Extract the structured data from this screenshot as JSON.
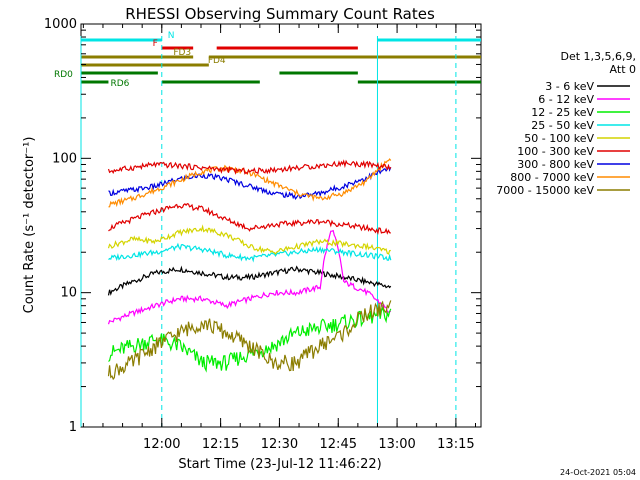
{
  "chart_data": {
    "type": "line",
    "title": "RHESSI Observing Summary Count Rates",
    "xlabel": "Start Time (23-Jul-12 11:46:22)",
    "ylabel": "Count Rate (s⁻¹ detector⁻¹)",
    "yscale": "log",
    "ylim": [
      1,
      1000
    ],
    "xlim_minutes_from_start": [
      -7,
      95
    ],
    "x_ticks": [
      {
        "label": "12:00",
        "t": 13.6
      },
      {
        "label": "12:15",
        "t": 28.6
      },
      {
        "label": "12:30",
        "t": 43.6
      },
      {
        "label": "12:45",
        "t": 58.6
      },
      {
        "label": "13:00",
        "t": 73.6
      },
      {
        "label": "13:15",
        "t": 88.6
      }
    ],
    "y_ticks": [
      {
        "label": "1",
        "v": 1
      },
      {
        "label": "10",
        "v": 10
      },
      {
        "label": "100",
        "v": 100
      },
      {
        "label": "1000",
        "v": 1000
      }
    ],
    "legend": {
      "placement": "right",
      "header": [
        "Det 1,3,5,6,9,",
        "Att 0"
      ],
      "entries": [
        {
          "label": "3 - 6 keV",
          "color": "#000000"
        },
        {
          "label": "6 - 12 keV",
          "color": "#ff00ff"
        },
        {
          "label": "12 - 25 keV",
          "color": "#00ee00"
        },
        {
          "label": "25 - 50 keV",
          "color": "#00e5e5"
        },
        {
          "label": "50 - 100 keV",
          "color": "#d4d400"
        },
        {
          "label": "100 - 300 keV",
          "color": "#e00000"
        },
        {
          "label": "300 - 800 keV",
          "color": "#0000e0"
        },
        {
          "label": "800 - 7000 keV",
          "color": "#ff8c00"
        },
        {
          "label": "7000 - 15000 keV",
          "color": "#8b7d00"
        }
      ]
    },
    "flag_bars": [
      {
        "label": "N",
        "color": "#00e5e5",
        "segments": [
          [
            -7,
            13.6
          ],
          [
            68.6,
            95
          ]
        ]
      },
      {
        "label": "F",
        "color": "#e00000",
        "segments": [
          [
            13.6,
            21.6
          ],
          [
            27.6,
            63.6
          ]
        ]
      },
      {
        "label": "FD3",
        "color": "#8b7d00",
        "segments": [
          [
            -7,
            21.6
          ],
          [
            25.6,
            95
          ]
        ]
      },
      {
        "label": "FD4",
        "color": "#8b7d00",
        "segments": [
          [
            -7,
            25.6
          ]
        ]
      },
      {
        "label": "RD0",
        "color": "#007700",
        "segments": [
          [
            -7,
            12.6
          ],
          [
            43.6,
            63.6
          ]
        ]
      },
      {
        "label": "RD6",
        "color": "#007700",
        "segments": [
          [
            -7,
            0
          ],
          [
            13.6,
            38.6
          ],
          [
            63.6,
            95
          ]
        ]
      }
    ],
    "night_boundaries": [
      {
        "t": -7,
        "style": "solid"
      },
      {
        "t": 13.6,
        "style": "dashed"
      },
      {
        "t": 68.6,
        "style": "solid"
      },
      {
        "t": 88.6,
        "style": "dashed"
      }
    ],
    "data_window": [
      0,
      72
    ],
    "series": [
      {
        "name": "3 - 6 keV",
        "color": "#000000",
        "t": [
          0,
          6,
          12,
          18,
          24,
          30,
          36,
          42,
          48,
          54,
          60,
          66,
          72
        ],
        "values": [
          10,
          12,
          14,
          15,
          14,
          13,
          13,
          14,
          15,
          14,
          13,
          12,
          11
        ]
      },
      {
        "name": "6 - 12 keV",
        "color": "#ff00ff",
        "t": [
          0,
          6,
          12,
          18,
          24,
          30,
          36,
          42,
          48,
          54,
          57,
          60,
          66,
          72
        ],
        "values": [
          6,
          7,
          8,
          9,
          9,
          8,
          9,
          10,
          10,
          11,
          30,
          12,
          10,
          7
        ]
      },
      {
        "name": "12 - 25 keV",
        "color": "#00ee00",
        "t": [
          0,
          6,
          12,
          18,
          24,
          30,
          36,
          42,
          48,
          54,
          60,
          66,
          72
        ],
        "values": [
          3.5,
          4,
          4.5,
          4,
          3,
          3,
          3.5,
          4,
          5,
          5.5,
          6,
          6.5,
          7
        ]
      },
      {
        "name": "25 - 50 keV",
        "color": "#00e5e5",
        "t": [
          0,
          6,
          12,
          18,
          24,
          30,
          36,
          42,
          48,
          54,
          60,
          66,
          72
        ],
        "values": [
          18,
          19,
          20,
          22,
          21,
          19,
          18,
          19,
          20,
          21,
          20,
          19,
          18
        ]
      },
      {
        "name": "50 - 100 keV",
        "color": "#d4d400",
        "t": [
          0,
          6,
          12,
          18,
          24,
          30,
          36,
          42,
          48,
          54,
          60,
          66,
          72
        ],
        "values": [
          22,
          25,
          24,
          28,
          30,
          27,
          22,
          20,
          22,
          24,
          23,
          22,
          20
        ]
      },
      {
        "name": "100 - 300 keV",
        "color": "#e00000",
        "t": [
          0,
          6,
          12,
          18,
          24,
          30,
          36,
          42,
          48,
          54,
          60,
          66,
          72
        ],
        "values": [
          30,
          35,
          40,
          45,
          42,
          35,
          30,
          32,
          33,
          34,
          32,
          30,
          28
        ]
      },
      {
        "name": "300 - 800 keV",
        "color": "#0000e0",
        "t": [
          0,
          6,
          12,
          18,
          24,
          30,
          36,
          42,
          48,
          54,
          60,
          66,
          72
        ],
        "values": [
          55,
          58,
          62,
          70,
          75,
          70,
          62,
          55,
          52,
          55,
          62,
          72,
          85
        ]
      },
      {
        "name": "800 - 7000 keV",
        "color": "#ff8c00",
        "t": [
          0,
          6,
          12,
          18,
          24,
          30,
          36,
          42,
          48,
          54,
          60,
          66,
          72
        ],
        "values": [
          45,
          50,
          58,
          68,
          80,
          85,
          78,
          65,
          55,
          50,
          55,
          68,
          100
        ]
      },
      {
        "name": "7000 - 15000 keV",
        "color": "#8b7d00",
        "t": [
          0,
          6,
          12,
          18,
          24,
          30,
          36,
          42,
          48,
          54,
          60,
          66,
          72
        ],
        "values": [
          2.5,
          3,
          4,
          5,
          6,
          5,
          4,
          3,
          3,
          4,
          5,
          7,
          8
        ]
      },
      {
        "name": "",
        "color": "#e00000",
        "t": [
          0,
          6,
          12,
          18,
          24,
          30,
          36,
          42,
          48,
          54,
          60,
          66,
          72
        ],
        "values": [
          80,
          85,
          90,
          88,
          85,
          82,
          80,
          82,
          85,
          88,
          92,
          90,
          85
        ]
      }
    ]
  },
  "footer": {
    "timestamp": "24-Oct-2021 05:04"
  }
}
